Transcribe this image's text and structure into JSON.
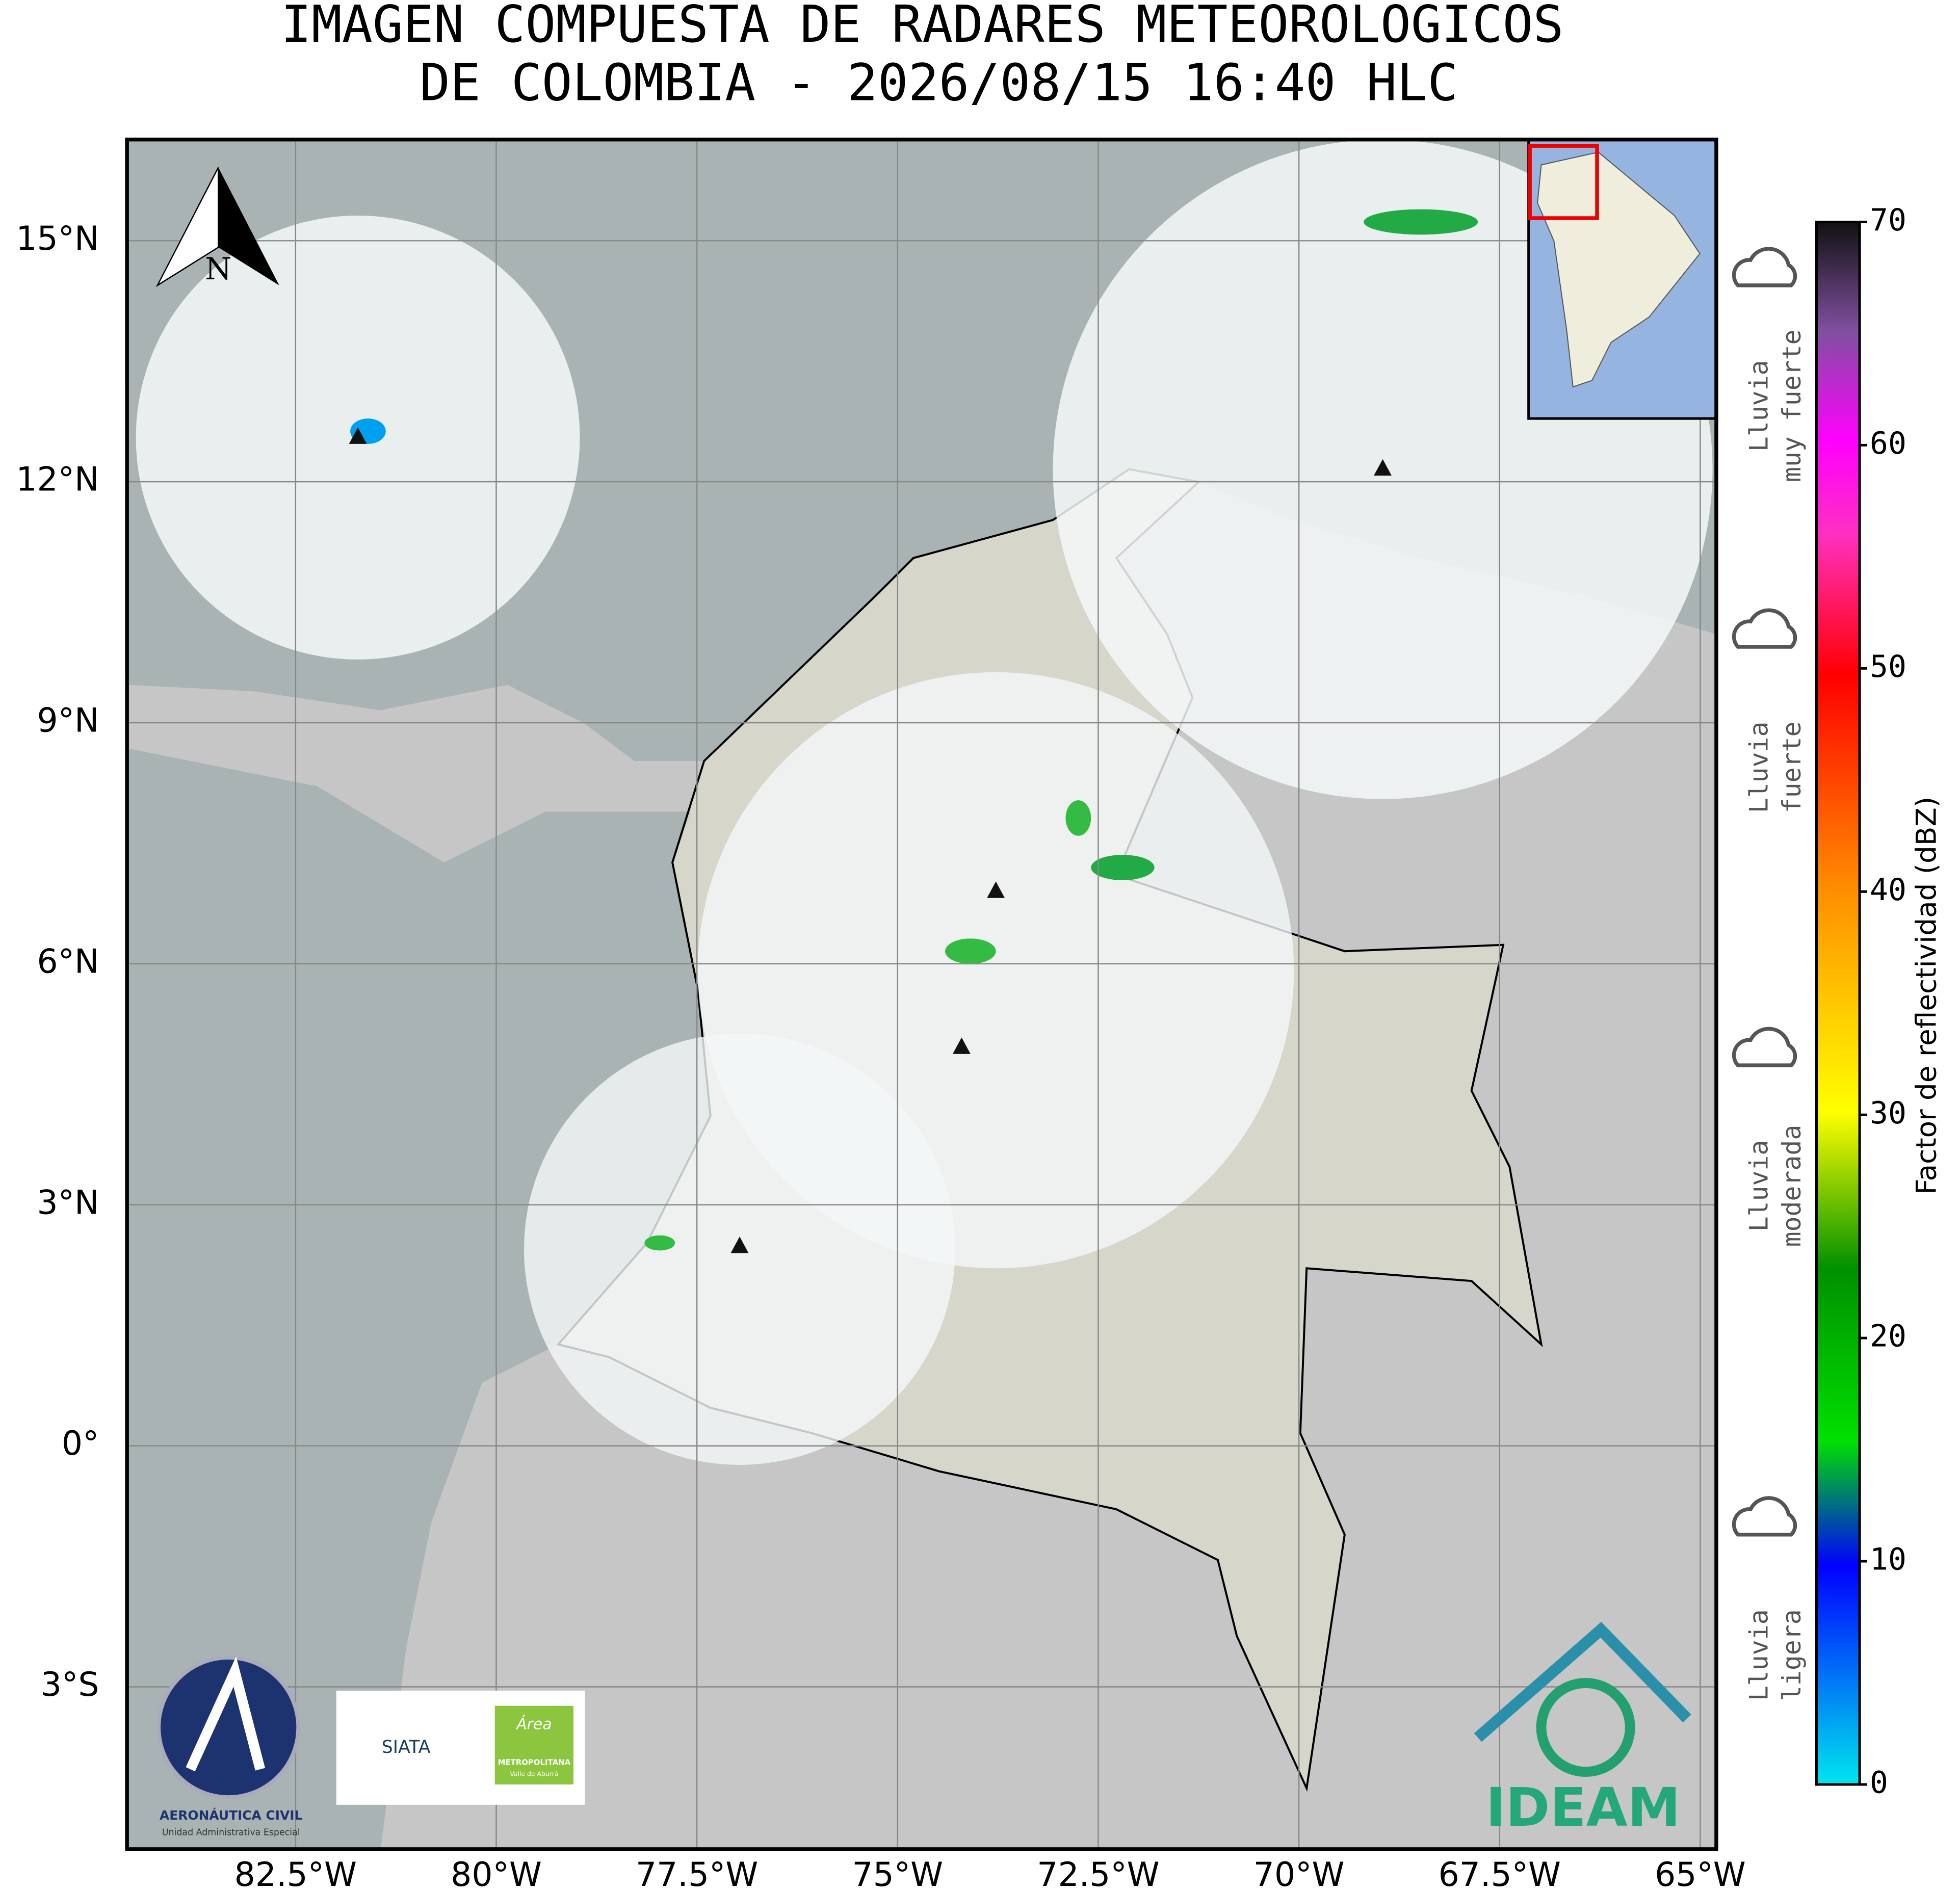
{
  "title": [
    "IMAGEN COMPUESTA DE RADARES METEOROLOGICOS",
    "DE COLOMBIA - 2026/08/15 16:40 HLC"
  ],
  "map": {
    "xlim": [
      -84.6,
      -64.8
    ],
    "ylim": [
      -5.02,
      16.26
    ],
    "xticks": [
      {
        "value": -82.5,
        "label": "82.5°W"
      },
      {
        "value": -80,
        "label": "80°W"
      },
      {
        "value": -77.5,
        "label": "77.5°W"
      },
      {
        "value": -75,
        "label": "75°W"
      },
      {
        "value": -72.5,
        "label": "72.5°W"
      },
      {
        "value": -70,
        "label": "70°W"
      },
      {
        "value": -67.5,
        "label": "67.5°W"
      },
      {
        "value": -65,
        "label": "65°W"
      }
    ],
    "yticks": [
      {
        "value": 15,
        "label": "15°N"
      },
      {
        "value": 12,
        "label": "12°N"
      },
      {
        "value": 9,
        "label": "9°N"
      },
      {
        "value": 6,
        "label": "6°N"
      },
      {
        "value": 3,
        "label": "3°N"
      },
      {
        "value": 0,
        "label": "0°"
      },
      {
        "value": -3,
        "label": "3°S"
      }
    ],
    "north_label": "N"
  },
  "colorbar": {
    "label": "Factor de reflectividad (dBZ)",
    "lim": [
      0,
      70
    ],
    "ticks": [
      0,
      10,
      20,
      30,
      40,
      50,
      60,
      70
    ]
  },
  "legend": [
    [
      "Lluvia",
      "ligera"
    ],
    [
      "Lluvia",
      "moderada"
    ],
    [
      "Lluvia",
      "fuerte"
    ],
    [
      "Lluvia",
      "muy fuerte"
    ]
  ],
  "logos": {
    "aeronautica": [
      "AERONÁUTICA CIVIL",
      "Unidad Administrativa Especial"
    ],
    "siata": "SIATA",
    "area": [
      "Área",
      "METROPOLITANA",
      "Valle de Aburrá"
    ],
    "ideam": "IDEAM"
  }
}
